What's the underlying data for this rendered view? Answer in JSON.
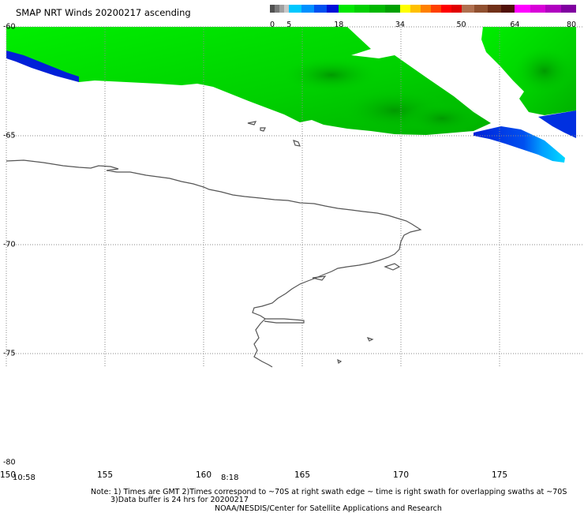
{
  "title": "SMAP NRT Winds 20200217 ascending",
  "colorbar": {
    "tick_labels": [
      "0",
      "5",
      "18",
      "34",
      "50",
      "64",
      "80"
    ],
    "segments": [
      {
        "from": 0,
        "to": 5,
        "colors": [
          "#505050",
          "#7a7a7a",
          "#a0a0a0",
          "#c8c8c8"
        ]
      },
      {
        "from": 5,
        "to": 18,
        "colors": [
          "#00c8ff",
          "#0090ff",
          "#0050f0",
          "#0010d8"
        ]
      },
      {
        "from": 18,
        "to": 34,
        "colors": [
          "#00e800",
          "#00d000",
          "#00b800",
          "#00a000"
        ]
      },
      {
        "from": 34,
        "to": 50,
        "colors": [
          "#ffff00",
          "#ffc000",
          "#ff8000",
          "#ff4000",
          "#ff0000",
          "#e00000"
        ]
      },
      {
        "from": 50,
        "to": 64,
        "colors": [
          "#b07050",
          "#905030",
          "#703018",
          "#501008"
        ]
      },
      {
        "from": 64,
        "to": 80,
        "colors": [
          "#ff00ff",
          "#d800d8",
          "#b000c0",
          "#8000a0"
        ]
      }
    ]
  },
  "map": {
    "lat_labels": [
      "-60",
      "-65",
      "-70",
      "-75",
      "-80"
    ],
    "lon_labels": [
      "150",
      "155",
      "160",
      "165",
      "170",
      "175"
    ],
    "lat_values": [
      -60,
      -65,
      -70,
      -75,
      -80
    ],
    "lon_values": [
      150,
      155,
      160,
      165,
      170,
      175
    ],
    "lon_range": [
      150,
      180
    ],
    "lat_range": [
      -60,
      -80
    ],
    "grid_style": "dotted",
    "colors": {
      "wind_light_green": "#00ee00",
      "wind_dark_green": "#00aa00",
      "wind_blue": "#0022dd",
      "wind_cyan": "#00ccff",
      "coastline": "#555555",
      "grid": "#888888"
    }
  },
  "swath_times": [
    "10:58",
    "8:18"
  ],
  "notes": {
    "line1": "Note: 1) Times are GMT 2)Times correspond to ~70S at right swath edge ~ time is right swath for overlapping swaths at ~70S",
    "line2": "3)Data buffer is 24 hrs for 20200217",
    "line3": "NOAA/NESDIS/Center for Satellite Applications and Research"
  }
}
